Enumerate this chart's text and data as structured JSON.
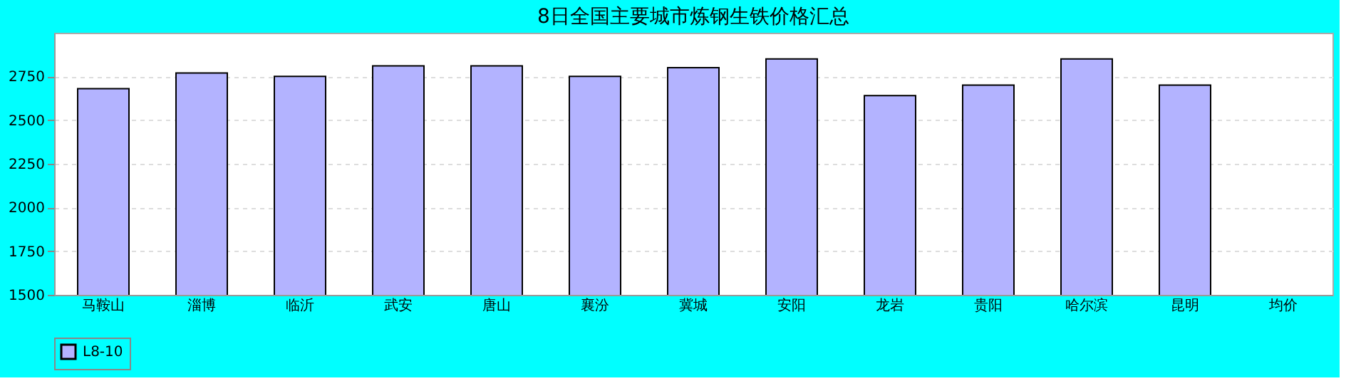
{
  "chart_data": {
    "type": "bar",
    "title": "8日全国主要城市炼钢生铁价格汇总",
    "categories": [
      "马鞍山",
      "淄博",
      "临沂",
      "武安",
      "唐山",
      "襄汾",
      "冀城",
      "安阳",
      "龙岩",
      "贵阳",
      "哈尔滨",
      "昆明",
      "均价"
    ],
    "series": [
      {
        "name": "L8-10",
        "color": "#b3b3ff",
        "values": [
          2680,
          2770,
          2750,
          2810,
          2810,
          2750,
          2800,
          2850,
          2640,
          2700,
          2850,
          2700,
          null
        ]
      }
    ],
    "ylim": [
      1500,
      3000
    ],
    "yticks": [
      1500,
      1750,
      2000,
      2250,
      2500,
      2750
    ],
    "grid": "y",
    "legend": "bottom"
  }
}
